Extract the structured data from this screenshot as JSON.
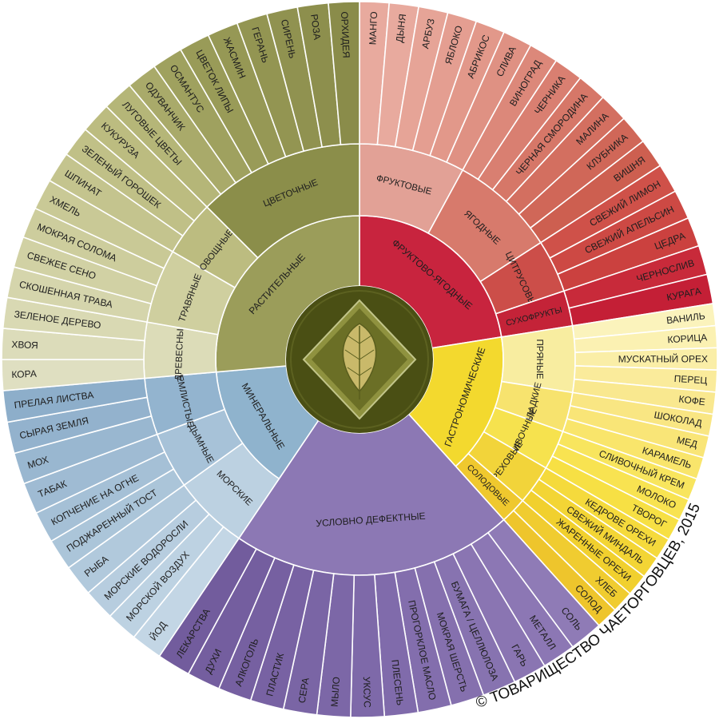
{
  "wheel": {
    "categories": [
      {
        "label": "ФРУКТОВО-ЯГОДНЫЕ",
        "color": "#c8243e",
        "subgroups": [
          {
            "label": "ФРУКТОВЫЕ",
            "color": "#e2a196",
            "items": [
              {
                "label": "МАНГО",
                "color": "#e8aa9e"
              },
              {
                "label": "ДЫНЯ",
                "color": "#e8aa9e"
              },
              {
                "label": "АРБУЗ",
                "color": "#e6a497"
              },
              {
                "label": "ЯБЛОКО",
                "color": "#e49e91"
              },
              {
                "label": "АБРИКОС",
                "color": "#e2988a"
              },
              {
                "label": "СЛИВА",
                "color": "#df9183"
              }
            ]
          },
          {
            "label": "ЯГОДНЫЕ",
            "color": "#d77a6c",
            "items": [
              {
                "label": "ВИНОГРАД",
                "color": "#dc887a"
              },
              {
                "label": "ЧЕРНИКА",
                "color": "#d97f71"
              },
              {
                "label": "ЧЕРНАЯ СМОРОДИНА",
                "color": "#d67768"
              },
              {
                "label": "МАЛИНА",
                "color": "#d36f60"
              },
              {
                "label": "КЛУБНИКА",
                "color": "#d06758"
              },
              {
                "label": "ВИШНЯ",
                "color": "#cd5f50"
              }
            ]
          },
          {
            "label": "ЦИТРУСОВЫЕ",
            "color": "#cc4e49",
            "items": [
              {
                "label": "СВЕЖИЙ ЛИМОН",
                "color": "#cf5149"
              },
              {
                "label": "СВЕЖИЙ АПЕЛЬСИН",
                "color": "#cd4944"
              },
              {
                "label": "ЦЕДРА",
                "color": "#cb413f"
              }
            ]
          },
          {
            "label": "СУХОФРУКТЫ",
            "color": "#c42338",
            "items": [
              {
                "label": "ЧЕРНОСЛИВ",
                "color": "#c82a3a"
              },
              {
                "label": "КУРАГА",
                "color": "#c41f36"
              }
            ]
          }
        ]
      },
      {
        "label": "ГАСТРОНОМИЧЕСКИЕ",
        "color": "#f3d92e",
        "subgroups": [
          {
            "label": "ПРЯНЫЕ",
            "color": "#f8eda0",
            "items": [
              {
                "label": "ВАНИЛЬ",
                "color": "#fbf3bc"
              },
              {
                "label": "КОРИЦА",
                "color": "#fbf1b2"
              },
              {
                "label": "МУСКАТНЫЙ ОРЕХ",
                "color": "#faeea7"
              },
              {
                "label": "ПЕРЕЦ",
                "color": "#faeb9b"
              },
              {
                "label": "КОФЕ",
                "color": "#f9e88f"
              }
            ]
          },
          {
            "label": "СЛАДКИЕ",
            "color": "#f7e36e",
            "items": [
              {
                "label": "ШОКОЛАД",
                "color": "#f9e683"
              },
              {
                "label": "МЕД",
                "color": "#f9e577"
              },
              {
                "label": "КАРАМЕЛЬ",
                "color": "#f9e56b"
              }
            ]
          },
          {
            "label": "СЛИВОЧНЫЕ",
            "color": "#f6e24e",
            "items": [
              {
                "label": "СЛИВОЧНЫЙ КРЕМ",
                "color": "#f8e55e"
              },
              {
                "label": "МОЛОКО",
                "color": "#f8e351"
              },
              {
                "label": "ТВОРОГ",
                "color": "#f7e044"
              }
            ]
          },
          {
            "label": "ОРЕХОВЫЕ",
            "color": "#f2d43a",
            "items": [
              {
                "label": "КЕДРОВЕ ОРЕХИ",
                "color": "#f5da3c"
              },
              {
                "label": "СВЕЖИЙ МИНДАЛЬ",
                "color": "#f3d535"
              },
              {
                "label": "ЖАРЕННЫЕ ОРЕХИ",
                "color": "#f1d02e"
              }
            ]
          },
          {
            "label": "СОЛОДОВЫЕ",
            "color": "#efc82e",
            "items": [
              {
                "label": "ХЛЕБ",
                "color": "#f0cc30"
              },
              {
                "label": "СОЛОД",
                "color": "#eec52c"
              }
            ]
          }
        ]
      },
      {
        "label": "УСЛОВНО ДЕФЕКТНЫЕ",
        "color": "#8c78b4",
        "subgroups": [
          {
            "label": "",
            "color": "#8c78b4",
            "items": [
              {
                "label": "СОЛЬ",
                "color": "#8f7bb6"
              },
              {
                "label": "МЕТАЛЛ",
                "color": "#8c77b4"
              },
              {
                "label": "ГАРЬ",
                "color": "#8a75b2"
              },
              {
                "label": "БУМАГА / ЦЕЛЛЮЛОЗА",
                "color": "#8773b0"
              },
              {
                "label": "МОКРАЯ ШЕРСТЬ",
                "color": "#8570ae"
              },
              {
                "label": "ПРОГОРКЛОЕ МАСЛО",
                "color": "#836ead"
              },
              {
                "label": "ПЛЕСЕНЬ",
                "color": "#806bab"
              },
              {
                "label": "УКСУС",
                "color": "#7e69a9"
              },
              {
                "label": "МЫЛО",
                "color": "#7c67a7"
              },
              {
                "label": "СЕРА",
                "color": "#7a65a5"
              },
              {
                "label": "ПЛАСТИК",
                "color": "#7862a3"
              },
              {
                "label": "АЛКОГОЛЬ",
                "color": "#7660a1"
              },
              {
                "label": "ДУХИ",
                "color": "#745e9f"
              },
              {
                "label": "ЛЕКАРСТВА",
                "color": "#725c9d"
              }
            ]
          }
        ]
      },
      {
        "label": "МИНЕРАЛЬНЫЕ",
        "color": "#8fb3cd",
        "subgroups": [
          {
            "label": "МОРСКИЕ",
            "color": "#bcd1e1",
            "items": [
              {
                "label": "ЙОД",
                "color": "#c3d6e5"
              },
              {
                "label": "МОРСКОЙ ВОЗДУХ",
                "color": "#bdd2e2"
              },
              {
                "label": "МОРСКИЕ ВОДОРОСЛИ",
                "color": "#b7cddf"
              },
              {
                "label": "РЫБА",
                "color": "#b1c9dc"
              }
            ]
          },
          {
            "label": "ДЫМНЫЕ",
            "color": "#a7c2d8",
            "items": [
              {
                "label": "ПОДЖАРЕННЫЙ ТОСТ",
                "color": "#abc5d9"
              },
              {
                "label": "КОПЧЕНИЕ НА ОГНЕ",
                "color": "#a5c0d6"
              },
              {
                "label": "ТАБАК",
                "color": "#9fbbd3"
              }
            ]
          },
          {
            "label": "ЗЕМЛИСТЫЕ",
            "color": "#93b4cf",
            "items": [
              {
                "label": "МОХ",
                "color": "#99b7d0"
              },
              {
                "label": "СЫРАЯ ЗЕМЛЯ",
                "color": "#93b2cd"
              },
              {
                "label": "ПРЕЛАЯ ЛИСТВА",
                "color": "#8daeca"
              }
            ]
          }
        ]
      },
      {
        "label": "РАСТИТЕЛЬНЫЕ",
        "color": "#9b9d5a",
        "subgroups": [
          {
            "label": "ДРЕВЕСНЫЕ",
            "color": "#dcdcb8",
            "items": [
              {
                "label": "КОРА",
                "color": "#dfdfc1"
              },
              {
                "label": "ХВОЯ",
                "color": "#dcdcba"
              },
              {
                "label": "ЗЕЛЕНОЕ ДЕРЕВО",
                "color": "#d9d9b3"
              }
            ]
          },
          {
            "label": "ТРАВЯНЫЕ",
            "color": "#cfcf9f",
            "items": [
              {
                "label": "СКОШЕННАЯ ТРАВА",
                "color": "#d5d5ac"
              },
              {
                "label": "СВЕЖЕЕ СЕНО",
                "color": "#d1d1a4"
              },
              {
                "label": "МОКРАЯ СОЛОМА",
                "color": "#cdcd9d"
              },
              {
                "label": "ХМЕЛЬ",
                "color": "#c9c996"
              }
            ]
          },
          {
            "label": "ОВОЩНЫЕ",
            "color": "#bcbc80",
            "items": [
              {
                "label": "ШПИНАТ",
                "color": "#c4c48e"
              },
              {
                "label": "ЗЕЛЕНЫЙ ГОРОШЕК",
                "color": "#c0c087"
              },
              {
                "label": "КУКУРУЗА",
                "color": "#bcbc80"
              }
            ]
          },
          {
            "label": "ЦВЕТОЧНЫЕ",
            "color": "#8b8e4a",
            "items": [
              {
                "label": "ЛУГОВЫЕ ЦВЕТЫ",
                "color": "#b5b678"
              },
              {
                "label": "ОДУВАНЧИК",
                "color": "#a9aa6a"
              },
              {
                "label": "ОСМАНТУС",
                "color": "#9fa15f"
              },
              {
                "label": "ЦВЕТОК ЛИПЫ",
                "color": "#999b58"
              },
              {
                "label": "ЖАСМИН",
                "color": "#969855"
              },
              {
                "label": "ГЕРАНЬ",
                "color": "#939552"
              },
              {
                "label": "СИРЕНЬ",
                "color": "#909250"
              },
              {
                "label": "РОЗА",
                "color": "#8d8f4d"
              },
              {
                "label": "ОРХИДЕЯ",
                "color": "#8a8c4a"
              }
            ]
          }
        ]
      }
    ],
    "center_color": "#4a4f14",
    "emblem": {
      "ring": "#6b6f26",
      "diamond": "#c2c58a",
      "leaf": "#7a7d2e"
    }
  },
  "copyright": "© ТОВАРИЩЕСТВО ЧАЕТОРГОВЦЕВ, 2015"
}
